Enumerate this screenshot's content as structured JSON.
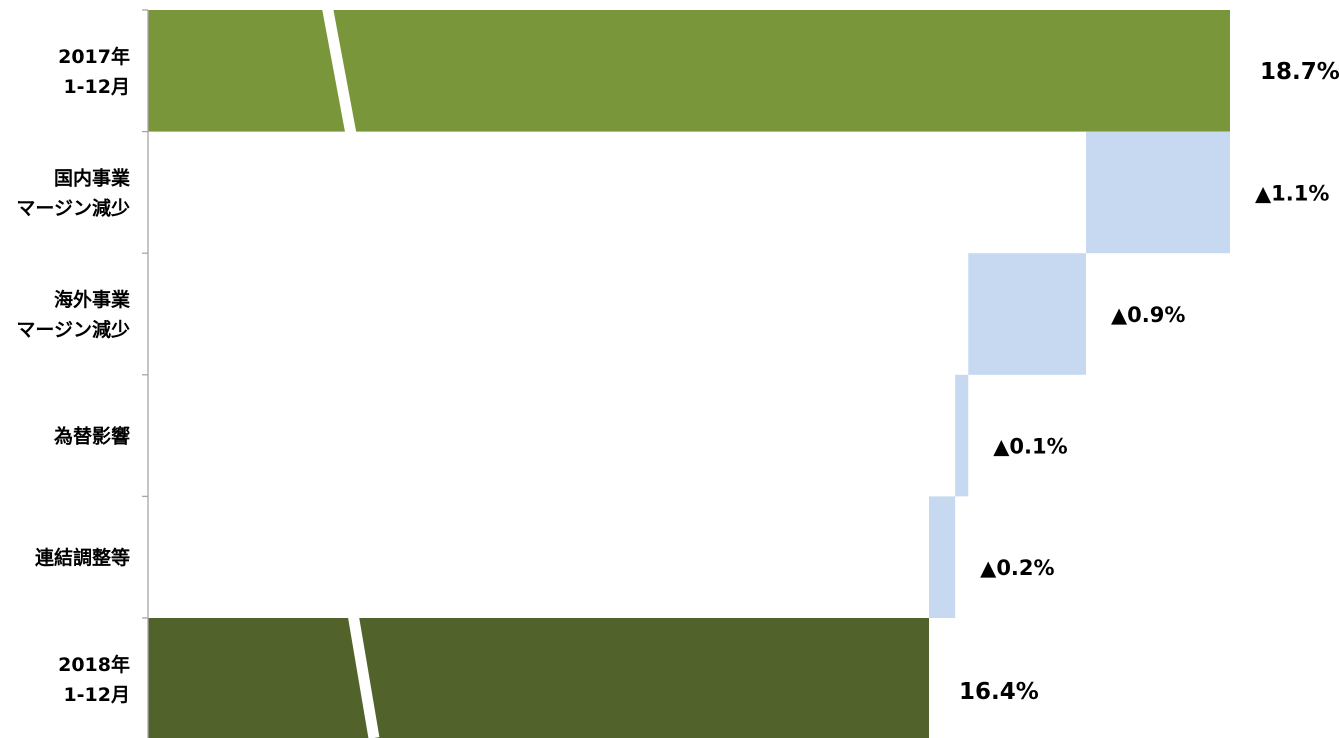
{
  "chart_data": {
    "type": "bar",
    "orientation": "horizontal",
    "subtype": "waterfall",
    "broken_axis": true,
    "grid": false,
    "legend": "none",
    "categories": [
      [
        "2017年",
        "1-12月"
      ],
      [
        "国内事業",
        "マージン減少"
      ],
      [
        "海外事業",
        "マージン減少"
      ],
      [
        "為替影響"
      ],
      [
        "連結調整等"
      ],
      [
        "2018年",
        "1-12月"
      ]
    ],
    "values": [
      18.7,
      -1.1,
      -0.9,
      -0.1,
      -0.2,
      16.4
    ],
    "kinds": [
      "total",
      "delta",
      "delta",
      "delta",
      "delta",
      "total"
    ],
    "labels": [
      "18.7%",
      "▲1.1%",
      "▲0.9%",
      "▲0.1%",
      "▲0.2%",
      "16.4%"
    ],
    "colors": {
      "start_total": "#7A963B",
      "end_total": "#52622B",
      "decrease": "#C6D9F0",
      "axis": "#A6A6A6",
      "break_gap": "#FFFFFF"
    }
  }
}
